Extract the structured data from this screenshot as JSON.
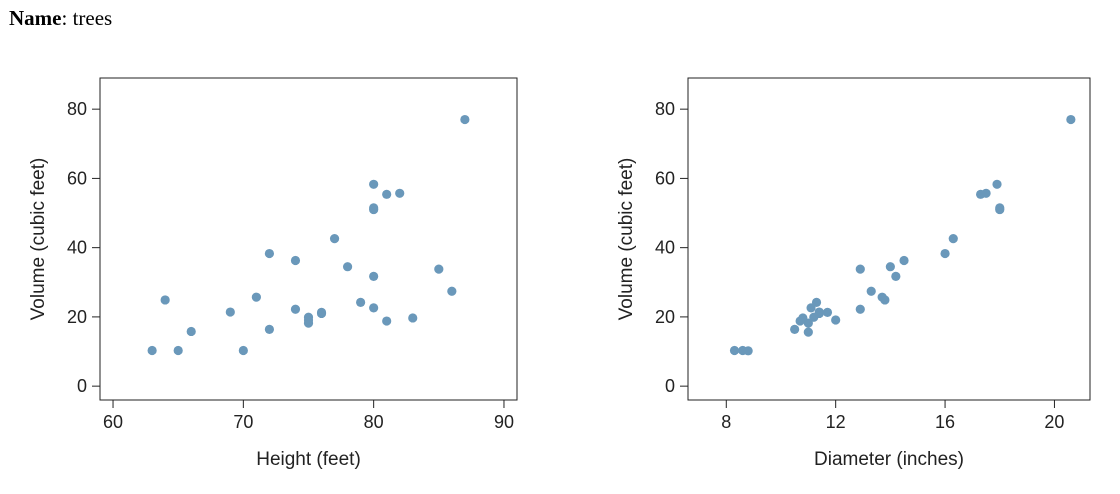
{
  "header": {
    "name_label": "Name",
    "name_value": "trees"
  },
  "chart_data": [
    {
      "type": "scatter",
      "title": "",
      "xlabel": "Height (feet)",
      "ylabel": "Volume (cubic feet)",
      "xlim": [
        59,
        91
      ],
      "ylim": [
        -4,
        89
      ],
      "xticks": [
        60,
        70,
        80,
        90
      ],
      "yticks": [
        0,
        20,
        40,
        60,
        80
      ],
      "grid": false,
      "point_color": "#6a98ba",
      "points": [
        {
          "x": 63,
          "y": 10.3
        },
        {
          "x": 64,
          "y": 24.9
        },
        {
          "x": 65,
          "y": 10.3
        },
        {
          "x": 66,
          "y": 15.8
        },
        {
          "x": 69,
          "y": 21.4
        },
        {
          "x": 70,
          "y": 10.3
        },
        {
          "x": 71,
          "y": 25.7
        },
        {
          "x": 72,
          "y": 38.3
        },
        {
          "x": 72,
          "y": 16.4
        },
        {
          "x": 74,
          "y": 36.3
        },
        {
          "x": 74,
          "y": 22.2
        },
        {
          "x": 75,
          "y": 19.9
        },
        {
          "x": 75,
          "y": 19.1
        },
        {
          "x": 75,
          "y": 18.2
        },
        {
          "x": 76,
          "y": 21.3
        },
        {
          "x": 76,
          "y": 21.0
        },
        {
          "x": 77,
          "y": 42.6
        },
        {
          "x": 78,
          "y": 34.5
        },
        {
          "x": 79,
          "y": 24.2
        },
        {
          "x": 80,
          "y": 58.3
        },
        {
          "x": 80,
          "y": 51.5
        },
        {
          "x": 80,
          "y": 51.0
        },
        {
          "x": 80,
          "y": 31.7
        },
        {
          "x": 80,
          "y": 22.6
        },
        {
          "x": 81,
          "y": 55.4
        },
        {
          "x": 81,
          "y": 18.8
        },
        {
          "x": 82,
          "y": 55.7
        },
        {
          "x": 83,
          "y": 19.7
        },
        {
          "x": 85,
          "y": 33.8
        },
        {
          "x": 86,
          "y": 27.4
        },
        {
          "x": 87,
          "y": 77.0
        }
      ]
    },
    {
      "type": "scatter",
      "title": "",
      "xlabel": "Diameter (inches)",
      "ylabel": "Volume (cubic feet)",
      "xlim": [
        6.6,
        21.3
      ],
      "ylim": [
        -4,
        89
      ],
      "xticks": [
        8,
        12,
        16,
        20
      ],
      "yticks": [
        0,
        20,
        40,
        60,
        80
      ],
      "grid": false,
      "point_color": "#6a98ba",
      "points": [
        {
          "x": 8.3,
          "y": 10.3
        },
        {
          "x": 8.6,
          "y": 10.3
        },
        {
          "x": 8.8,
          "y": 10.2
        },
        {
          "x": 10.5,
          "y": 16.4
        },
        {
          "x": 10.7,
          "y": 18.8
        },
        {
          "x": 10.8,
          "y": 19.7
        },
        {
          "x": 11.0,
          "y": 15.6
        },
        {
          "x": 11.0,
          "y": 18.2
        },
        {
          "x": 11.1,
          "y": 22.6
        },
        {
          "x": 11.2,
          "y": 19.9
        },
        {
          "x": 11.3,
          "y": 24.2
        },
        {
          "x": 11.4,
          "y": 21.0
        },
        {
          "x": 11.4,
          "y": 21.4
        },
        {
          "x": 11.7,
          "y": 21.3
        },
        {
          "x": 12.0,
          "y": 19.1
        },
        {
          "x": 12.9,
          "y": 22.2
        },
        {
          "x": 12.9,
          "y": 33.8
        },
        {
          "x": 13.3,
          "y": 27.4
        },
        {
          "x": 13.7,
          "y": 25.7
        },
        {
          "x": 13.8,
          "y": 24.9
        },
        {
          "x": 14.0,
          "y": 34.5
        },
        {
          "x": 14.2,
          "y": 31.7
        },
        {
          "x": 14.5,
          "y": 36.3
        },
        {
          "x": 16.0,
          "y": 38.3
        },
        {
          "x": 16.3,
          "y": 42.6
        },
        {
          "x": 17.3,
          "y": 55.4
        },
        {
          "x": 17.5,
          "y": 55.7
        },
        {
          "x": 17.9,
          "y": 58.3
        },
        {
          "x": 18.0,
          "y": 51.5
        },
        {
          "x": 18.0,
          "y": 51.0
        },
        {
          "x": 20.6,
          "y": 77.0
        }
      ]
    }
  ]
}
